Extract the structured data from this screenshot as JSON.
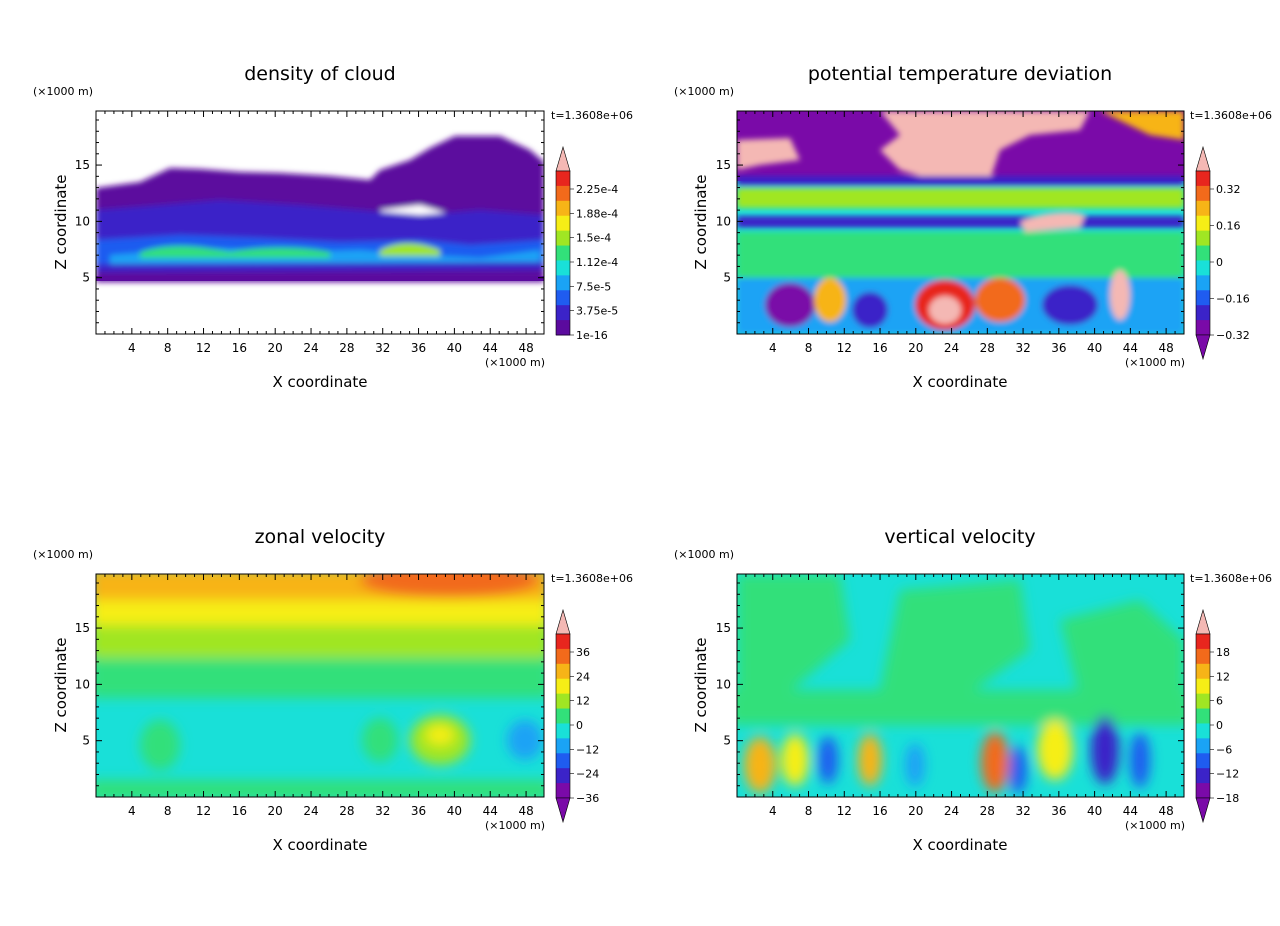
{
  "chart_data": [
    {
      "type": "heatmap",
      "title": "density of cloud",
      "xlabel": "X coordinate",
      "ylabel": "Z coordinate",
      "x_unit": "(×1000 m)",
      "y_unit": "(×1000 m)",
      "time_label": "t=1.3608e+06",
      "xlim": [
        0,
        50
      ],
      "ylim": [
        0,
        19.8
      ],
      "x_ticks": [
        "4",
        "8",
        "12",
        "16",
        "20",
        "24",
        "28",
        "32",
        "36",
        "40",
        "44",
        "48"
      ],
      "y_ticks": [
        "5",
        "10",
        "15"
      ],
      "colorbar_labels": [
        "2.25e-4",
        "1.88e-4",
        "1.5e-4",
        "1.12e-4",
        "7.5e-5",
        "3.75e-5",
        "1e-16"
      ],
      "colorbar_extend": "max",
      "palette": [
        "#5b0a9e",
        "#3b23c8",
        "#1f5cf0",
        "#1aa3f5",
        "#19e0d8",
        "#32e07a",
        "#a0e623",
        "#f6ee16",
        "#f7b417",
        "#f26a1b",
        "#e8261e",
        "#f4b8b4"
      ]
    },
    {
      "type": "heatmap",
      "title": "potential temperature deviation",
      "xlabel": "X coordinate",
      "ylabel": "Z coordinate",
      "x_unit": "(×1000 m)",
      "y_unit": "(×1000 m)",
      "time_label": "t=1.3608e+06",
      "xlim": [
        0,
        50
      ],
      "ylim": [
        0,
        19.8
      ],
      "x_ticks": [
        "4",
        "8",
        "12",
        "16",
        "20",
        "24",
        "28",
        "32",
        "36",
        "40",
        "44",
        "48"
      ],
      "y_ticks": [
        "5",
        "10",
        "15"
      ],
      "colorbar_labels": [
        "0.32",
        "0.16",
        "0",
        "−0.16",
        "−0.32"
      ],
      "colorbar_extend": "both",
      "palette": [
        "#7a0aa8",
        "#3b23c8",
        "#1f5cf0",
        "#1aa3f5",
        "#19e0d8",
        "#32e07a",
        "#a0e623",
        "#f6ee16",
        "#f7b417",
        "#f26a1b",
        "#e8261e",
        "#f4b8b4"
      ]
    },
    {
      "type": "heatmap",
      "title": "zonal velocity",
      "xlabel": "X coordinate",
      "ylabel": "Z coordinate",
      "x_unit": "(×1000 m)",
      "y_unit": "(×1000 m)",
      "time_label": "t=1.3608e+06",
      "xlim": [
        0,
        50
      ],
      "ylim": [
        0,
        19.8
      ],
      "x_ticks": [
        "4",
        "8",
        "12",
        "16",
        "20",
        "24",
        "28",
        "32",
        "36",
        "40",
        "44",
        "48"
      ],
      "y_ticks": [
        "5",
        "10",
        "15"
      ],
      "colorbar_labels": [
        "36",
        "24",
        "12",
        "0",
        "−12",
        "−24",
        "−36"
      ],
      "colorbar_extend": "both",
      "palette": [
        "#7a0aa8",
        "#3b23c8",
        "#1f5cf0",
        "#1aa3f5",
        "#19e0d8",
        "#32e07a",
        "#a0e623",
        "#f6ee16",
        "#f7b417",
        "#f26a1b",
        "#e8261e",
        "#f4b8b4"
      ]
    },
    {
      "type": "heatmap",
      "title": "vertical velocity",
      "xlabel": "X coordinate",
      "ylabel": "Z coordinate",
      "x_unit": "(×1000 m)",
      "y_unit": "(×1000 m)",
      "time_label": "t=1.3608e+06",
      "xlim": [
        0,
        50
      ],
      "ylim": [
        0,
        19.8
      ],
      "x_ticks": [
        "4",
        "8",
        "12",
        "16",
        "20",
        "24",
        "28",
        "32",
        "36",
        "40",
        "44",
        "48"
      ],
      "y_ticks": [
        "5",
        "10",
        "15"
      ],
      "colorbar_labels": [
        "18",
        "12",
        "6",
        "0",
        "−6",
        "−12",
        "−18"
      ],
      "colorbar_extend": "both",
      "palette": [
        "#7a0aa8",
        "#3b23c8",
        "#1f5cf0",
        "#1aa3f5",
        "#19e0d8",
        "#32e07a",
        "#a0e623",
        "#f6ee16",
        "#f7b417",
        "#f26a1b",
        "#e8261e",
        "#f4b8b4"
      ]
    }
  ]
}
